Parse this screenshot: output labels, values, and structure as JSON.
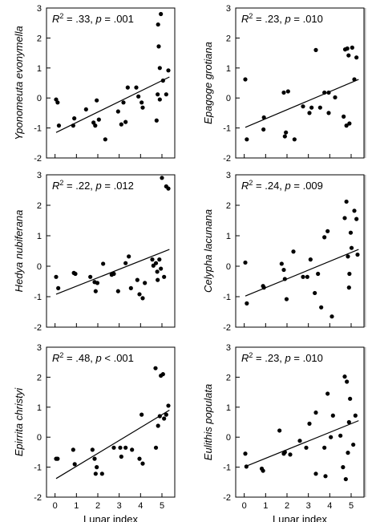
{
  "chart_data": [
    {
      "type": "scatter",
      "ylabel": "Yponomeuta evonymella",
      "xlabel": "",
      "annotation": {
        "r2_prefix": "R",
        "r2_sup": "2",
        "r2_value": " = .33, ",
        "p_symbol": "p",
        "p_value": " = .001"
      },
      "xlim": [
        -0.4,
        5.6
      ],
      "ylim": [
        -2,
        3
      ],
      "yticks": [
        "-2",
        "-1",
        "0",
        "1",
        "2",
        "3"
      ],
      "xticks": [],
      "points": [
        [
          0.05,
          -0.05
        ],
        [
          0.12,
          -0.15
        ],
        [
          0.18,
          -0.92
        ],
        [
          0.85,
          -0.92
        ],
        [
          0.9,
          -0.68
        ],
        [
          1.45,
          -0.38
        ],
        [
          1.8,
          -0.82
        ],
        [
          1.88,
          -0.92
        ],
        [
          2.05,
          -0.72
        ],
        [
          1.95,
          -0.08
        ],
        [
          2.35,
          -1.38
        ],
        [
          2.95,
          -0.45
        ],
        [
          3.1,
          -0.88
        ],
        [
          3.2,
          -0.15
        ],
        [
          3.3,
          -0.8
        ],
        [
          3.4,
          0.35
        ],
        [
          3.8,
          0.35
        ],
        [
          3.9,
          0.05
        ],
        [
          4.05,
          -0.15
        ],
        [
          4.1,
          -0.32
        ],
        [
          4.75,
          -0.75
        ],
        [
          4.8,
          0.12
        ],
        [
          4.9,
          1.0
        ],
        [
          4.85,
          1.72
        ],
        [
          4.82,
          2.45
        ],
        [
          4.95,
          2.8
        ],
        [
          5.05,
          0.58
        ],
        [
          5.2,
          0.12
        ],
        [
          5.3,
          0.92
        ],
        [
          4.9,
          -0.05
        ]
      ],
      "fit": {
        "x": [
          0.05,
          5.35
        ],
        "y": [
          -1.15,
          0.7
        ]
      }
    },
    {
      "type": "scatter",
      "ylabel": "Epagoge grotiana",
      "xlabel": "",
      "annotation": {
        "r2_prefix": "R",
        "r2_sup": "2",
        "r2_value": " = .23, ",
        "p_symbol": "p",
        "p_value": " = .010"
      },
      "xlim": [
        -0.4,
        5.6
      ],
      "ylim": [
        -2,
        3
      ],
      "yticks": [
        "-2",
        "-1",
        "0",
        "1",
        "2",
        "3"
      ],
      "xticks": [],
      "points": [
        [
          0.05,
          0.62
        ],
        [
          0.12,
          -1.38
        ],
        [
          0.9,
          -1.05
        ],
        [
          0.92,
          -0.65
        ],
        [
          1.85,
          0.18
        ],
        [
          2.05,
          0.22
        ],
        [
          1.95,
          -1.15
        ],
        [
          1.9,
          -1.28
        ],
        [
          2.35,
          -1.38
        ],
        [
          2.75,
          -0.28
        ],
        [
          3.05,
          -0.5
        ],
        [
          3.15,
          -0.32
        ],
        [
          3.35,
          1.6
        ],
        [
          3.55,
          -0.32
        ],
        [
          3.75,
          0.18
        ],
        [
          3.95,
          0.18
        ],
        [
          3.95,
          -0.5
        ],
        [
          4.25,
          0.02
        ],
        [
          4.65,
          -0.62
        ],
        [
          4.72,
          1.62
        ],
        [
          4.82,
          1.65
        ],
        [
          4.88,
          1.42
        ],
        [
          4.92,
          -0.85
        ],
        [
          4.78,
          -0.92
        ],
        [
          5.05,
          1.68
        ],
        [
          5.15,
          0.62
        ],
        [
          5.25,
          1.35
        ]
      ],
      "fit": {
        "x": [
          0.05,
          5.35
        ],
        "y": [
          -0.98,
          0.62
        ]
      }
    },
    {
      "type": "scatter",
      "ylabel": "Hedya nubiferana",
      "xlabel": "",
      "annotation": {
        "r2_prefix": "R",
        "r2_sup": "2",
        "r2_value": " = .22, ",
        "p_symbol": "p",
        "p_value": " = .012"
      },
      "xlim": [
        -0.4,
        5.6
      ],
      "ylim": [
        -2,
        3
      ],
      "yticks": [
        "-2",
        "-1",
        "0",
        "1",
        "2",
        "3"
      ],
      "xticks": [],
      "points": [
        [
          0.05,
          -0.35
        ],
        [
          0.15,
          -0.72
        ],
        [
          0.88,
          -0.22
        ],
        [
          0.95,
          -0.25
        ],
        [
          1.65,
          -0.35
        ],
        [
          1.85,
          -0.52
        ],
        [
          1.9,
          -0.82
        ],
        [
          1.98,
          -0.55
        ],
        [
          2.25,
          0.08
        ],
        [
          2.65,
          -0.28
        ],
        [
          2.75,
          -0.25
        ],
        [
          2.95,
          -0.82
        ],
        [
          3.3,
          0.1
        ],
        [
          3.45,
          0.32
        ],
        [
          3.55,
          -0.72
        ],
        [
          3.85,
          -0.45
        ],
        [
          3.95,
          -0.92
        ],
        [
          4.1,
          -1.05
        ],
        [
          4.2,
          -0.55
        ],
        [
          4.55,
          0.22
        ],
        [
          4.6,
          0.02
        ],
        [
          4.72,
          0.1
        ],
        [
          4.78,
          -0.18
        ],
        [
          4.8,
          -0.45
        ],
        [
          4.88,
          0.22
        ],
        [
          4.95,
          -0.08
        ],
        [
          5.0,
          2.9
        ],
        [
          5.1,
          -0.35
        ],
        [
          5.2,
          2.62
        ],
        [
          5.3,
          2.55
        ]
      ],
      "fit": {
        "x": [
          0.05,
          5.35
        ],
        "y": [
          -0.92,
          0.55
        ]
      }
    },
    {
      "type": "scatter",
      "ylabel": "Celypha lacunana",
      "xlabel": "",
      "annotation": {
        "r2_prefix": "R",
        "r2_sup": "2",
        "r2_value": " = .24, ",
        "p_symbol": "p",
        "p_value": " = .009"
      },
      "xlim": [
        -0.4,
        5.6
      ],
      "ylim": [
        -2,
        3
      ],
      "yticks": [
        "-2",
        "-1",
        "0",
        "1",
        "2",
        "3"
      ],
      "xticks": [],
      "points": [
        [
          0.05,
          0.12
        ],
        [
          0.12,
          -1.22
        ],
        [
          0.88,
          -0.65
        ],
        [
          0.92,
          -0.7
        ],
        [
          1.75,
          0.08
        ],
        [
          1.85,
          -0.12
        ],
        [
          1.9,
          -0.42
        ],
        [
          1.98,
          -1.08
        ],
        [
          2.3,
          0.48
        ],
        [
          2.75,
          -0.35
        ],
        [
          2.95,
          -0.35
        ],
        [
          3.1,
          0.22
        ],
        [
          3.3,
          -0.88
        ],
        [
          3.45,
          -0.25
        ],
        [
          3.6,
          -1.35
        ],
        [
          3.75,
          0.95
        ],
        [
          3.9,
          1.15
        ],
        [
          4.1,
          -1.65
        ],
        [
          4.7,
          1.58
        ],
        [
          4.78,
          2.12
        ],
        [
          4.85,
          0.32
        ],
        [
          4.9,
          -0.7
        ],
        [
          4.92,
          -0.25
        ],
        [
          4.98,
          1.1
        ],
        [
          5.02,
          0.6
        ],
        [
          5.15,
          1.82
        ],
        [
          5.25,
          1.55
        ],
        [
          5.3,
          0.38
        ]
      ],
      "fit": {
        "x": [
          0.05,
          5.35
        ],
        "y": [
          -0.98,
          0.55
        ]
      }
    },
    {
      "type": "scatter",
      "ylabel": "Epirrita christyi",
      "xlabel": "Lunar index",
      "annotation": {
        "r2_prefix": "R",
        "r2_sup": "2",
        "r2_value": " = .48, ",
        "p_symbol": "p",
        "p_value": " < .001"
      },
      "xlim": [
        -0.4,
        5.6
      ],
      "ylim": [
        -2,
        3
      ],
      "yticks": [
        "-2",
        "-1",
        "0",
        "1",
        "2",
        "3"
      ],
      "xticks": [
        "0",
        "1",
        "2",
        "3",
        "4",
        "5"
      ],
      "points": [
        [
          0.05,
          -0.72
        ],
        [
          0.12,
          -0.72
        ],
        [
          0.85,
          -0.42
        ],
        [
          0.92,
          -0.9
        ],
        [
          1.75,
          -0.42
        ],
        [
          1.85,
          -0.72
        ],
        [
          1.95,
          -1.0
        ],
        [
          1.9,
          -1.22
        ],
        [
          2.2,
          -1.22
        ],
        [
          2.75,
          -0.35
        ],
        [
          3.05,
          -0.35
        ],
        [
          3.1,
          -0.65
        ],
        [
          3.3,
          -0.35
        ],
        [
          3.6,
          -0.42
        ],
        [
          3.95,
          -0.72
        ],
        [
          4.1,
          -0.88
        ],
        [
          4.05,
          0.75
        ],
        [
          4.7,
          2.3
        ],
        [
          4.72,
          -0.35
        ],
        [
          4.82,
          0.38
        ],
        [
          4.9,
          0.7
        ],
        [
          4.95,
          2.05
        ],
        [
          5.05,
          2.1
        ],
        [
          5.1,
          0.62
        ],
        [
          5.2,
          0.75
        ],
        [
          5.3,
          1.05
        ]
      ],
      "fit": {
        "x": [
          0.05,
          5.35
        ],
        "y": [
          -1.38,
          0.9
        ]
      }
    },
    {
      "type": "scatter",
      "ylabel": "Eulithis populata",
      "xlabel": "Lunar index",
      "annotation": {
        "r2_prefix": "R",
        "r2_sup": "2",
        "r2_value": " = .23, ",
        "p_symbol": "p",
        "p_value": " = .010"
      },
      "xlim": [
        -0.4,
        5.6
      ],
      "ylim": [
        -2,
        3
      ],
      "yticks": [
        "-2",
        "-1",
        "0",
        "1",
        "2",
        "3"
      ],
      "xticks": [
        "0",
        "1",
        "2",
        "3",
        "4",
        "5"
      ],
      "points": [
        [
          0.05,
          -0.55
        ],
        [
          0.1,
          -0.98
        ],
        [
          0.82,
          -1.05
        ],
        [
          0.88,
          -1.12
        ],
        [
          1.65,
          0.22
        ],
        [
          1.85,
          -0.55
        ],
        [
          1.9,
          -0.5
        ],
        [
          2.15,
          -0.58
        ],
        [
          2.6,
          -0.12
        ],
        [
          2.9,
          -0.35
        ],
        [
          3.05,
          0.45
        ],
        [
          3.35,
          0.82
        ],
        [
          3.35,
          -1.22
        ],
        [
          3.8,
          -1.3
        ],
        [
          3.75,
          -0.35
        ],
        [
          3.9,
          1.45
        ],
        [
          4.05,
          0.0
        ],
        [
          4.15,
          0.72
        ],
        [
          4.5,
          0.05
        ],
        [
          4.62,
          -1.0
        ],
        [
          4.7,
          2.02
        ],
        [
          4.75,
          -1.4
        ],
        [
          4.8,
          1.85
        ],
        [
          4.85,
          -0.52
        ],
        [
          4.9,
          0.5
        ],
        [
          4.95,
          1.28
        ],
        [
          5.1,
          -0.25
        ],
        [
          5.2,
          0.72
        ]
      ],
      "fit": {
        "x": [
          0.05,
          5.35
        ],
        "y": [
          -0.98,
          0.55
        ]
      }
    }
  ]
}
